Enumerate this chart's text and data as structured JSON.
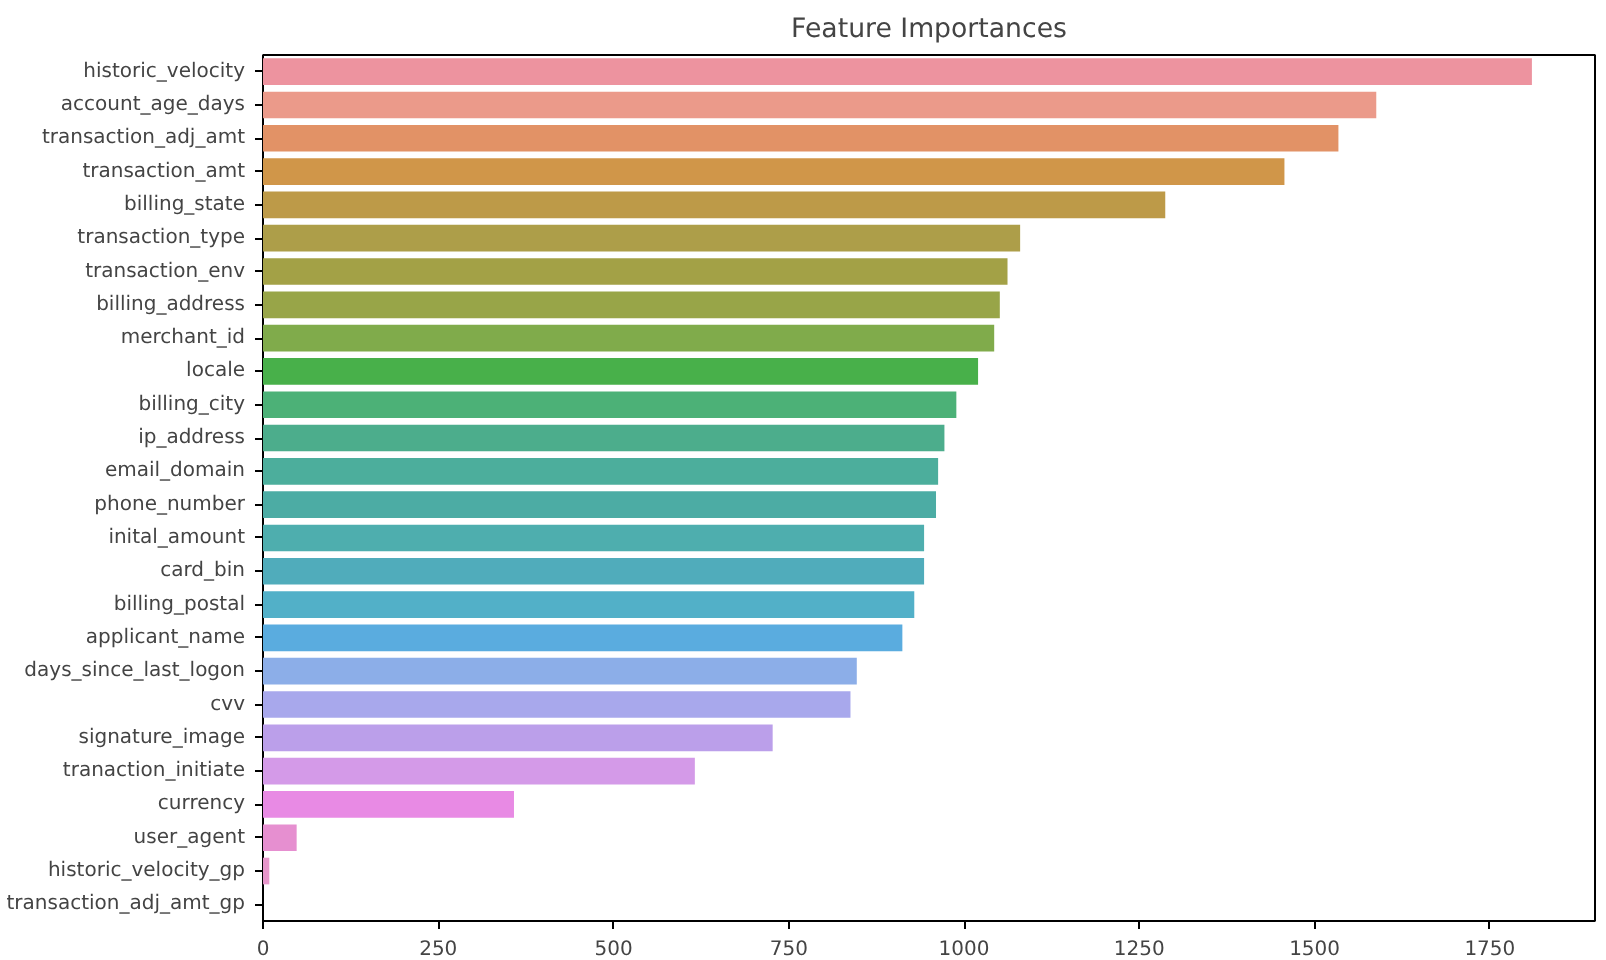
{
  "chart_data": {
    "type": "bar",
    "orientation": "horizontal",
    "title": "Feature Importances",
    "categories": [
      "historic_velocity",
      "account_age_days",
      "transaction_adj_amt",
      "transaction_amt",
      "billing_state",
      "transaction_type",
      "transaction_env",
      "billing_address",
      "merchant_id",
      "locale",
      "billing_city",
      "ip_address",
      "email_domain",
      "phone_number",
      "inital_amount",
      "card_bin",
      "billing_postal",
      "applicant_name",
      "days_since_last_logon",
      "cvv",
      "signature_image",
      "tranaction_initiate",
      "currency",
      "user_agent",
      "historic_velocity_gp",
      "transaction_adj_amt_gp"
    ],
    "values": [
      1810,
      1588,
      1534,
      1457,
      1287,
      1080,
      1062,
      1051,
      1043,
      1020,
      989,
      972,
      963,
      960,
      943,
      943,
      929,
      912,
      847,
      838,
      727,
      616,
      358,
      48,
      9,
      0
    ],
    "colors": [
      "#ed939f",
      "#eb9a8a",
      "#e29266",
      "#d09649",
      "#bd9a48",
      "#ad9e49",
      "#a3a146",
      "#98a548",
      "#80ab4b",
      "#48b04a",
      "#4cb177",
      "#4cad8c",
      "#4cae9c",
      "#4caca4",
      "#4eaeae",
      "#50acbb",
      "#52b0c8",
      "#5aacdf",
      "#8caee8",
      "#a8a8ec",
      "#bb9fea",
      "#d49ae8",
      "#e88ae4",
      "#e68fd0",
      "#e796cb",
      "#e8a0c2"
    ],
    "xlim": [
      0,
      1900
    ],
    "xticks": [
      0,
      250,
      500,
      750,
      1000,
      1250,
      1500,
      1750
    ],
    "grid": false
  }
}
